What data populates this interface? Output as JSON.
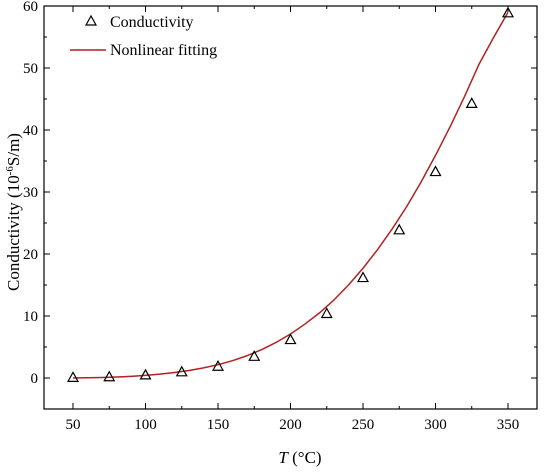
{
  "chart_data": {
    "type": "scatter",
    "title": "",
    "xlabel_italic": "T",
    "xlabel_unit": " (°C)",
    "ylabel_main": "Conductivity (10",
    "ylabel_sup": "-6",
    "ylabel_rest": "S/m)",
    "xlim": [
      30,
      370
    ],
    "ylim": [
      -5,
      60
    ],
    "x_ticks": [
      50,
      100,
      150,
      200,
      250,
      300,
      350
    ],
    "y_ticks": [
      0,
      10,
      20,
      30,
      40,
      50,
      60
    ],
    "x_minor_ticks": [
      75,
      125,
      175,
      225,
      275,
      325
    ],
    "y_minor_ticks": [
      5,
      15,
      25,
      35,
      45,
      55
    ],
    "grid": false,
    "legend_position": "top-left",
    "series": [
      {
        "name": "Conductivity",
        "kind": "scatter",
        "marker": "open-triangle",
        "color": "#000000",
        "x": [
          50,
          75,
          100,
          125,
          150,
          175,
          200,
          225,
          250,
          275,
          300,
          325,
          350
        ],
        "y": [
          0.1,
          0.2,
          0.5,
          1.0,
          1.9,
          3.5,
          6.2,
          10.4,
          16.2,
          23.9,
          33.3,
          44.3,
          58.9
        ]
      },
      {
        "name": "Nonlinear fitting",
        "kind": "line",
        "color": "#b22222",
        "x": [
          50,
          55,
          60,
          65,
          70,
          75,
          80,
          85,
          90,
          95,
          100,
          110,
          120,
          130,
          140,
          150,
          160,
          170,
          180,
          190,
          200,
          210,
          220,
          230,
          240,
          250,
          260,
          270,
          280,
          290,
          300,
          310,
          320,
          330,
          340,
          350
        ],
        "y": [
          0.0,
          0.02,
          0.04,
          0.06,
          0.09,
          0.12,
          0.16,
          0.21,
          0.27,
          0.34,
          0.42,
          0.62,
          0.88,
          1.21,
          1.63,
          2.15,
          2.79,
          3.59,
          4.56,
          5.73,
          7.1,
          8.7,
          10.5,
          12.6,
          15.0,
          17.7,
          20.7,
          24.0,
          27.6,
          31.6,
          35.9,
          40.5,
          45.4,
          50.6,
          54.9,
          59.0
        ]
      }
    ]
  }
}
